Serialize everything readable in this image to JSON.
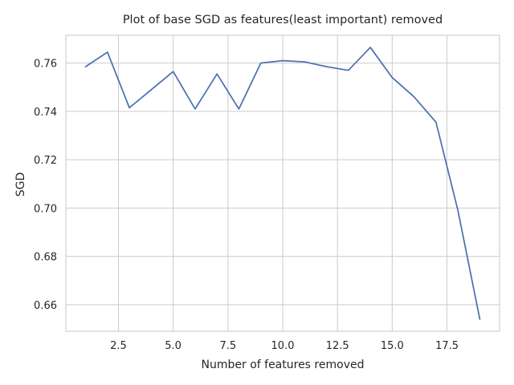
{
  "chart_data": {
    "type": "line",
    "title": "Plot of base SGD as features(least important) removed",
    "xlabel": "Number of features removed",
    "ylabel": "SGD",
    "xlim": [
      0.1,
      19.9
    ],
    "ylim": [
      0.649,
      0.7715
    ],
    "grid": true,
    "x_ticks": [
      2.5,
      5.0,
      7.5,
      10.0,
      12.5,
      15.0,
      17.5
    ],
    "x_tick_labels": [
      "2.5",
      "5.0",
      "7.5",
      "10.0",
      "12.5",
      "15.0",
      "17.5"
    ],
    "y_ticks": [
      0.66,
      0.68,
      0.7,
      0.72,
      0.74,
      0.76
    ],
    "y_tick_labels": [
      "0.66",
      "0.68",
      "0.70",
      "0.72",
      "0.74",
      "0.76"
    ],
    "series": [
      {
        "color": "#4c72b0",
        "x": [
          1,
          2,
          3,
          4,
          5,
          6,
          7,
          8,
          9,
          10,
          11,
          12,
          13,
          14,
          15,
          16,
          17,
          18,
          19
        ],
        "y": [
          0.7585,
          0.7645,
          0.7415,
          0.749,
          0.7565,
          0.741,
          0.7555,
          0.741,
          0.76,
          0.761,
          0.7605,
          0.7585,
          0.757,
          0.7665,
          0.754,
          0.746,
          0.7355,
          0.699,
          0.654
        ]
      }
    ]
  }
}
